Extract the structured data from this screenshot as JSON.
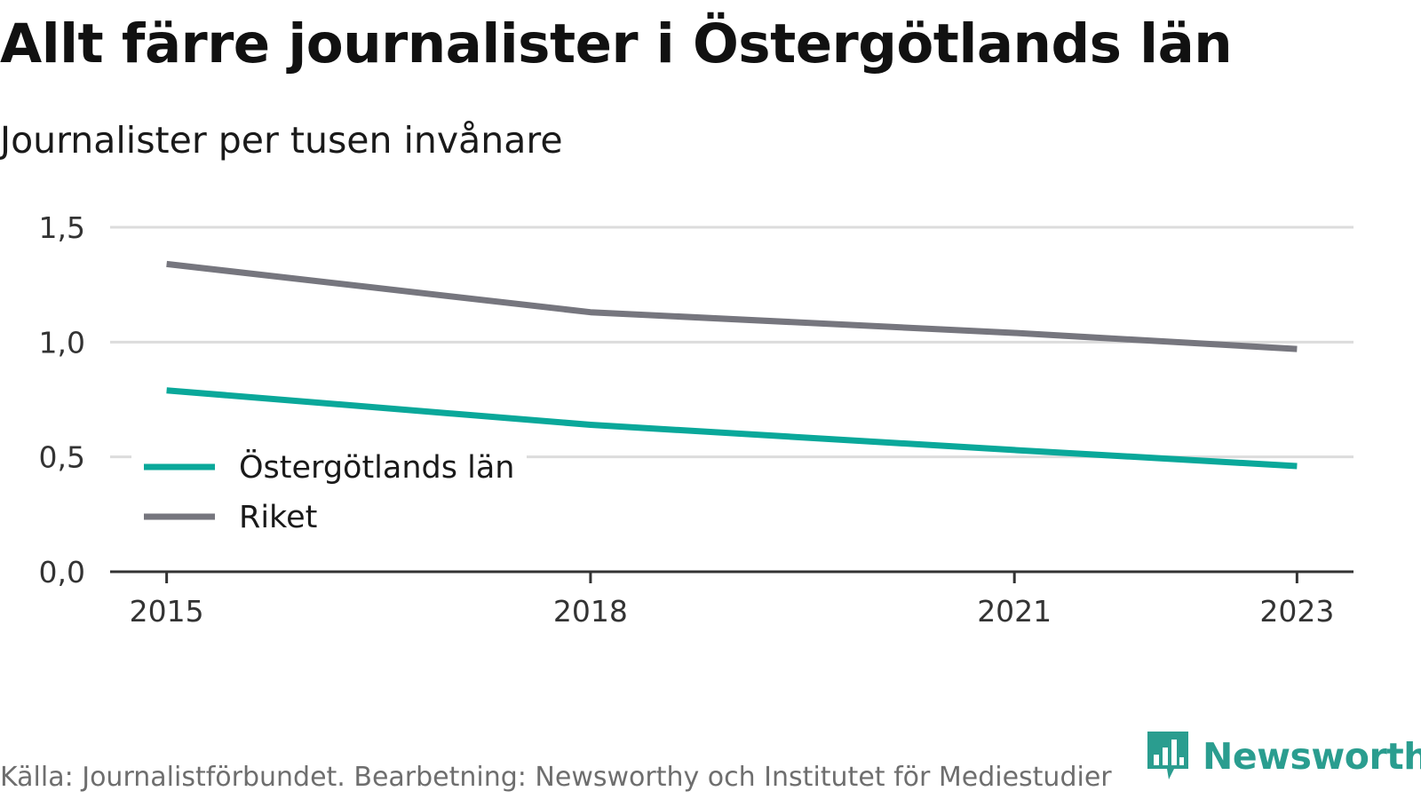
{
  "title": "Allt färre journalister i Östergötlands län",
  "subtitle": "Journalister per tusen invånare",
  "source": "Källa: Journalistförbundet. Bearbetning: Newsworthy och Institutet för Mediestudier",
  "brand": {
    "name": "Newsworthy",
    "color": "#2a9d8f",
    "icon": "bar-chart-speech-bubble-icon"
  },
  "chart_data": {
    "type": "line",
    "x": [
      2015,
      2018,
      2021,
      2023
    ],
    "x_tick_labels": [
      "2015",
      "2018",
      "2021",
      "2023"
    ],
    "y_ticks": [
      0,
      0.5,
      1.0,
      1.5
    ],
    "y_tick_labels": [
      "0,0",
      "0,5",
      "1,0",
      "1,5"
    ],
    "ylim": [
      0,
      1.5
    ],
    "xlim": [
      2014.6,
      2023.4
    ],
    "grid": true,
    "legend_position": "lower-left",
    "series": [
      {
        "name": "Östergötlands län",
        "color": "#0aa89a",
        "x": [
          2015,
          2018,
          2021,
          2023
        ],
        "values": [
          0.79,
          0.64,
          0.53,
          0.46
        ]
      },
      {
        "name": "Riket",
        "color": "#76767e",
        "x": [
          2015,
          2018,
          2021,
          2023
        ],
        "values": [
          1.34,
          1.13,
          1.04,
          0.97
        ]
      }
    ]
  }
}
